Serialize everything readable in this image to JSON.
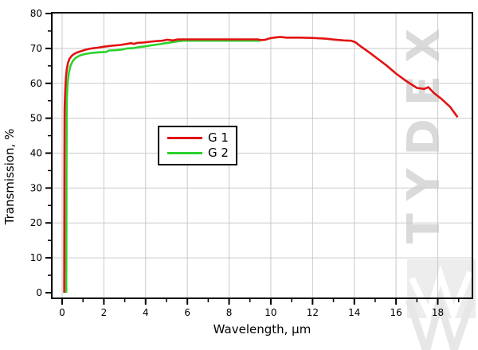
{
  "watermark": {
    "text": "TYDEX",
    "color": "#dadada"
  },
  "colors": {
    "background": "#ffffff",
    "grid": "#c9c9c9",
    "axis": "#000000",
    "tick_label": "#000000",
    "watermark_patch": "#ededed",
    "watermark_ray_light": "#e7e7e7",
    "watermark_ray_white": "#ffffff"
  },
  "chart_data": {
    "type": "line",
    "title": "",
    "xlabel": "Wavelength, μm",
    "ylabel": "Transmission, %",
    "xlim": [
      -0.496,
      19.66
    ],
    "ylim": [
      -1.6,
      80.23
    ],
    "grid": true,
    "legend_position": "inside-center-left",
    "x_major_ticks": [
      0,
      2,
      4,
      6,
      8,
      10,
      12,
      14,
      16,
      18
    ],
    "x_minor_ticks": [
      1,
      3,
      5,
      7,
      9,
      11,
      13,
      15,
      17,
      19
    ],
    "y_major_ticks": [
      0,
      10,
      20,
      30,
      40,
      50,
      60,
      70,
      80
    ],
    "y_minor_ticks": [
      5,
      15,
      25,
      35,
      45,
      55,
      65,
      75
    ],
    "series": [
      {
        "name": "G 1",
        "color": "#e31212",
        "points": [
          [
            0.1,
            0
          ],
          [
            0.11,
            40
          ],
          [
            0.12,
            53
          ],
          [
            0.15,
            58
          ],
          [
            0.18,
            61.5
          ],
          [
            0.22,
            64
          ],
          [
            0.28,
            65.8
          ],
          [
            0.35,
            67
          ],
          [
            0.45,
            67.8
          ],
          [
            0.55,
            68.3
          ],
          [
            0.7,
            68.8
          ],
          [
            0.9,
            69.2
          ],
          [
            1.1,
            69.6
          ],
          [
            1.4,
            70.0
          ],
          [
            1.7,
            70.2
          ],
          [
            2.0,
            70.5
          ],
          [
            2.4,
            70.8
          ],
          [
            2.8,
            71.0
          ],
          [
            3.1,
            71.3
          ],
          [
            3.3,
            71.5
          ],
          [
            3.45,
            71.3
          ],
          [
            3.6,
            71.6
          ],
          [
            3.9,
            71.7
          ],
          [
            4.2,
            71.9
          ],
          [
            4.5,
            72.1
          ],
          [
            4.8,
            72.2
          ],
          [
            5.05,
            72.5
          ],
          [
            5.3,
            72.3
          ],
          [
            5.55,
            72.6
          ],
          [
            6.0,
            72.6
          ],
          [
            7.0,
            72.6
          ],
          [
            8.0,
            72.6
          ],
          [
            9.0,
            72.6
          ],
          [
            9.35,
            72.6
          ],
          [
            9.55,
            72.4
          ],
          [
            9.75,
            72.5
          ],
          [
            9.95,
            72.9
          ],
          [
            10.15,
            73.1
          ],
          [
            10.45,
            73.3
          ],
          [
            10.75,
            73.1
          ],
          [
            11.4,
            73.1
          ],
          [
            12.0,
            73.0
          ],
          [
            12.6,
            72.8
          ],
          [
            13.1,
            72.5
          ],
          [
            13.5,
            72.3
          ],
          [
            13.85,
            72.2
          ],
          [
            14.05,
            71.8
          ],
          [
            14.35,
            70.4
          ],
          [
            14.75,
            68.7
          ],
          [
            15.15,
            66.9
          ],
          [
            15.55,
            65.1
          ],
          [
            16.0,
            62.8
          ],
          [
            16.5,
            60.6
          ],
          [
            17.0,
            58.7
          ],
          [
            17.35,
            58.4
          ],
          [
            17.55,
            58.9
          ],
          [
            17.8,
            57.3
          ],
          [
            18.2,
            55.4
          ],
          [
            18.6,
            53.2
          ],
          [
            18.95,
            50.3
          ]
        ]
      },
      {
        "name": "G 2",
        "color": "#2bd32b",
        "points": [
          [
            0.2,
            0
          ],
          [
            0.21,
            35
          ],
          [
            0.22,
            55
          ],
          [
            0.26,
            60
          ],
          [
            0.32,
            63
          ],
          [
            0.4,
            65
          ],
          [
            0.5,
            66.3
          ],
          [
            0.65,
            67.3
          ],
          [
            0.85,
            68.0
          ],
          [
            1.1,
            68.4
          ],
          [
            1.4,
            68.7
          ],
          [
            1.8,
            68.9
          ],
          [
            2.1,
            69.0
          ],
          [
            2.25,
            69.4
          ],
          [
            2.6,
            69.5
          ],
          [
            2.9,
            69.7
          ],
          [
            3.1,
            70.0
          ],
          [
            3.45,
            70.1
          ],
          [
            3.7,
            70.4
          ],
          [
            4.0,
            70.6
          ],
          [
            4.3,
            70.9
          ],
          [
            4.65,
            71.2
          ],
          [
            4.95,
            71.5
          ],
          [
            5.2,
            71.7
          ],
          [
            5.5,
            72.0
          ],
          [
            5.8,
            72.2
          ],
          [
            7.0,
            72.2
          ],
          [
            8.5,
            72.2
          ],
          [
            9.5,
            72.2
          ]
        ]
      }
    ]
  }
}
